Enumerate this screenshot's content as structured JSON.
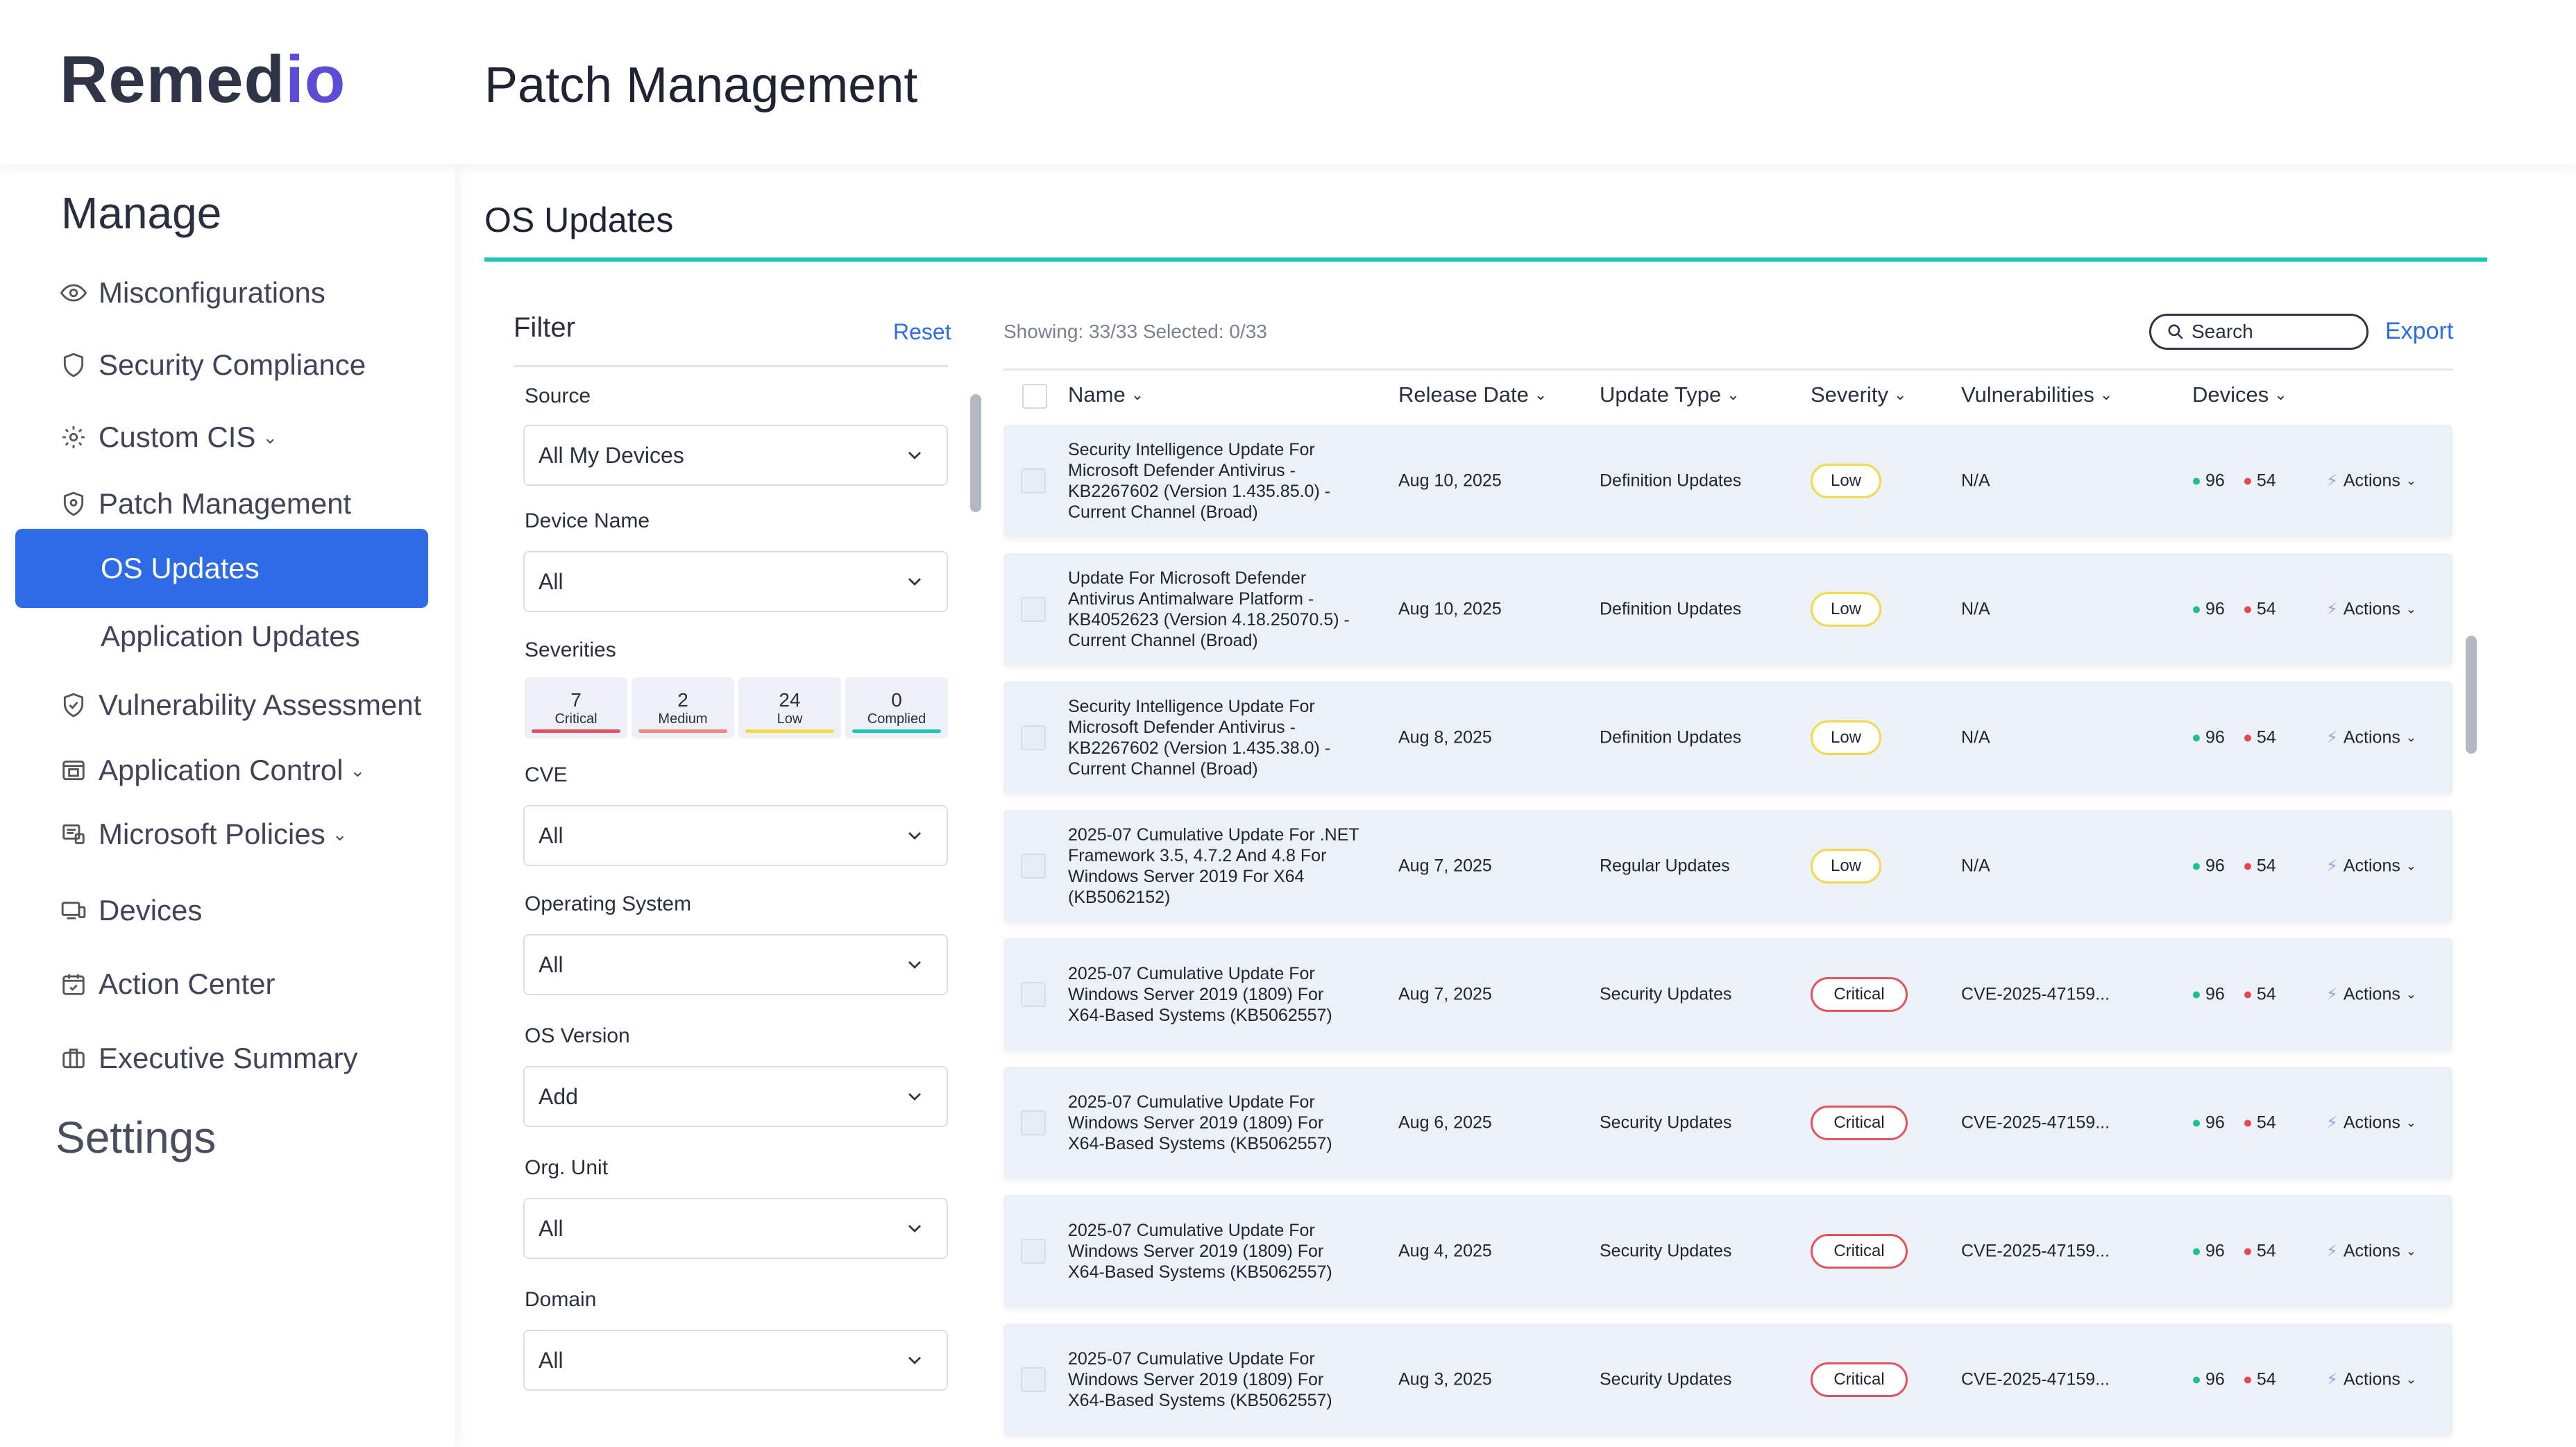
{
  "app": {
    "logo_text": "Remedio",
    "logo_main": "Remed",
    "logo_accent": "io",
    "page_title": "Patch Management"
  },
  "sidebar": {
    "manage_title": "Manage",
    "settings_title": "Settings",
    "items": [
      {
        "label": "Misconfigurations",
        "icon": "eye-icon"
      },
      {
        "label": "Security Compliance",
        "icon": "shield-icon"
      },
      {
        "label": "Custom CIS",
        "icon": "gear-icon"
      },
      {
        "label": "Patch Management",
        "icon": "shield-gear-icon"
      },
      {
        "label": "OS Updates",
        "active": true
      },
      {
        "label": "Application Updates"
      },
      {
        "label": "Vulnerability Assessment",
        "icon": "shield-check-icon"
      },
      {
        "label": "Application Control",
        "icon": "app-window-icon"
      },
      {
        "label": "Microsoft Policies",
        "icon": "policies-icon"
      },
      {
        "label": "Devices",
        "icon": "devices-icon"
      },
      {
        "label": "Action Center",
        "icon": "calendar-check-icon"
      },
      {
        "label": "Executive Summary",
        "icon": "briefcase-icon"
      }
    ]
  },
  "section": {
    "title": "OS Updates"
  },
  "filter": {
    "title": "Filter",
    "reset": "Reset",
    "source_label": "Source",
    "source_value": "All My Devices",
    "device_name_label": "Device Name",
    "device_name_value": "All",
    "severities_label": "Severities",
    "severities": [
      {
        "count": "7",
        "label": "Critical",
        "color": "#e05562"
      },
      {
        "count": "2",
        "label": "Medium",
        "color": "#f08a7e"
      },
      {
        "count": "24",
        "label": "Low",
        "color": "#f4d94c"
      },
      {
        "count": "0",
        "label": "Complied",
        "color": "#22c4b4"
      }
    ],
    "cve_label": "CVE",
    "cve_value": "All",
    "os_label": "Operating System",
    "os_value": "All",
    "os_version_label": "OS Version",
    "os_version_value": "Add",
    "org_unit_label": "Org. Unit",
    "org_unit_value": "All",
    "domain_label": "Domain",
    "domain_value": "All"
  },
  "table": {
    "showing": "Showing: 33/33   Selected: 0/33",
    "search_placeholder": "Search",
    "export": "Export",
    "columns": {
      "name": "Name",
      "release_date": "Release Date",
      "update_type": "Update Type",
      "severity": "Severity",
      "vulnerabilities": "Vulnerabilities",
      "devices": "Devices"
    },
    "rows": [
      {
        "name": "Security Intelligence Update For Microsoft Defender Antivirus - KB2267602 (Version 1.435.85.0) - Current Channel (Broad)",
        "date": "Aug 10, 2025",
        "type": "Definition Updates",
        "severity": "Low",
        "vuln": "N/A",
        "green": "96",
        "red": "54",
        "actions": "Actions"
      },
      {
        "name": "Update For Microsoft Defender Antivirus Antimalware Platform - KB4052623 (Version 4.18.25070.5) - Current Channel (Broad)",
        "date": "Aug 10, 2025",
        "type": "Definition Updates",
        "severity": "Low",
        "vuln": "N/A",
        "green": "96",
        "red": "54",
        "actions": "Actions"
      },
      {
        "name": "Security Intelligence Update For Microsoft Defender Antivirus - KB2267602 (Version 1.435.38.0) - Current Channel (Broad)",
        "date": "Aug 8, 2025",
        "type": "Definition Updates",
        "severity": "Low",
        "vuln": "N/A",
        "green": "96",
        "red": "54",
        "actions": "Actions"
      },
      {
        "name": "2025-07 Cumulative Update For .NET Framework 3.5, 4.7.2 And 4.8 For Windows Server 2019 For X64 (KB5062152)",
        "date": "Aug 7, 2025",
        "type": "Regular Updates",
        "severity": "Low",
        "vuln": "N/A",
        "green": "96",
        "red": "54",
        "actions": "Actions"
      },
      {
        "name": "2025-07 Cumulative Update For Windows Server 2019 (1809) For X64-Based Systems (KB5062557)",
        "date": "Aug 7, 2025",
        "type": "Security Updates",
        "severity": "Critical",
        "vuln": "CVE-2025-47159...",
        "green": "96",
        "red": "54",
        "actions": "Actions"
      },
      {
        "name": "2025-07 Cumulative Update For Windows Server 2019 (1809) For X64-Based Systems (KB5062557)",
        "date": "Aug 6, 2025",
        "type": "Security Updates",
        "severity": "Critical",
        "vuln": "CVE-2025-47159...",
        "green": "96",
        "red": "54",
        "actions": "Actions"
      },
      {
        "name": "2025-07 Cumulative Update For Windows Server 2019 (1809) For X64-Based Systems (KB5062557)",
        "date": "Aug 4, 2025",
        "type": "Security Updates",
        "severity": "Critical",
        "vuln": "CVE-2025-47159...",
        "green": "96",
        "red": "54",
        "actions": "Actions"
      },
      {
        "name": "2025-07 Cumulative Update For Windows Server 2019 (1809) For X64-Based Systems (KB5062557)",
        "date": "Aug 3, 2025",
        "type": "Security Updates",
        "severity": "Critical",
        "vuln": "CVE-2025-47159...",
        "green": "96",
        "red": "54",
        "actions": "Actions"
      }
    ]
  },
  "colors": {
    "accent": "#2e6be6",
    "teal": "#22c4b4",
    "low": "#f4d94c",
    "critical": "#e05562",
    "green_dot": "#1fbf8f",
    "red_dot": "#e5484d"
  }
}
